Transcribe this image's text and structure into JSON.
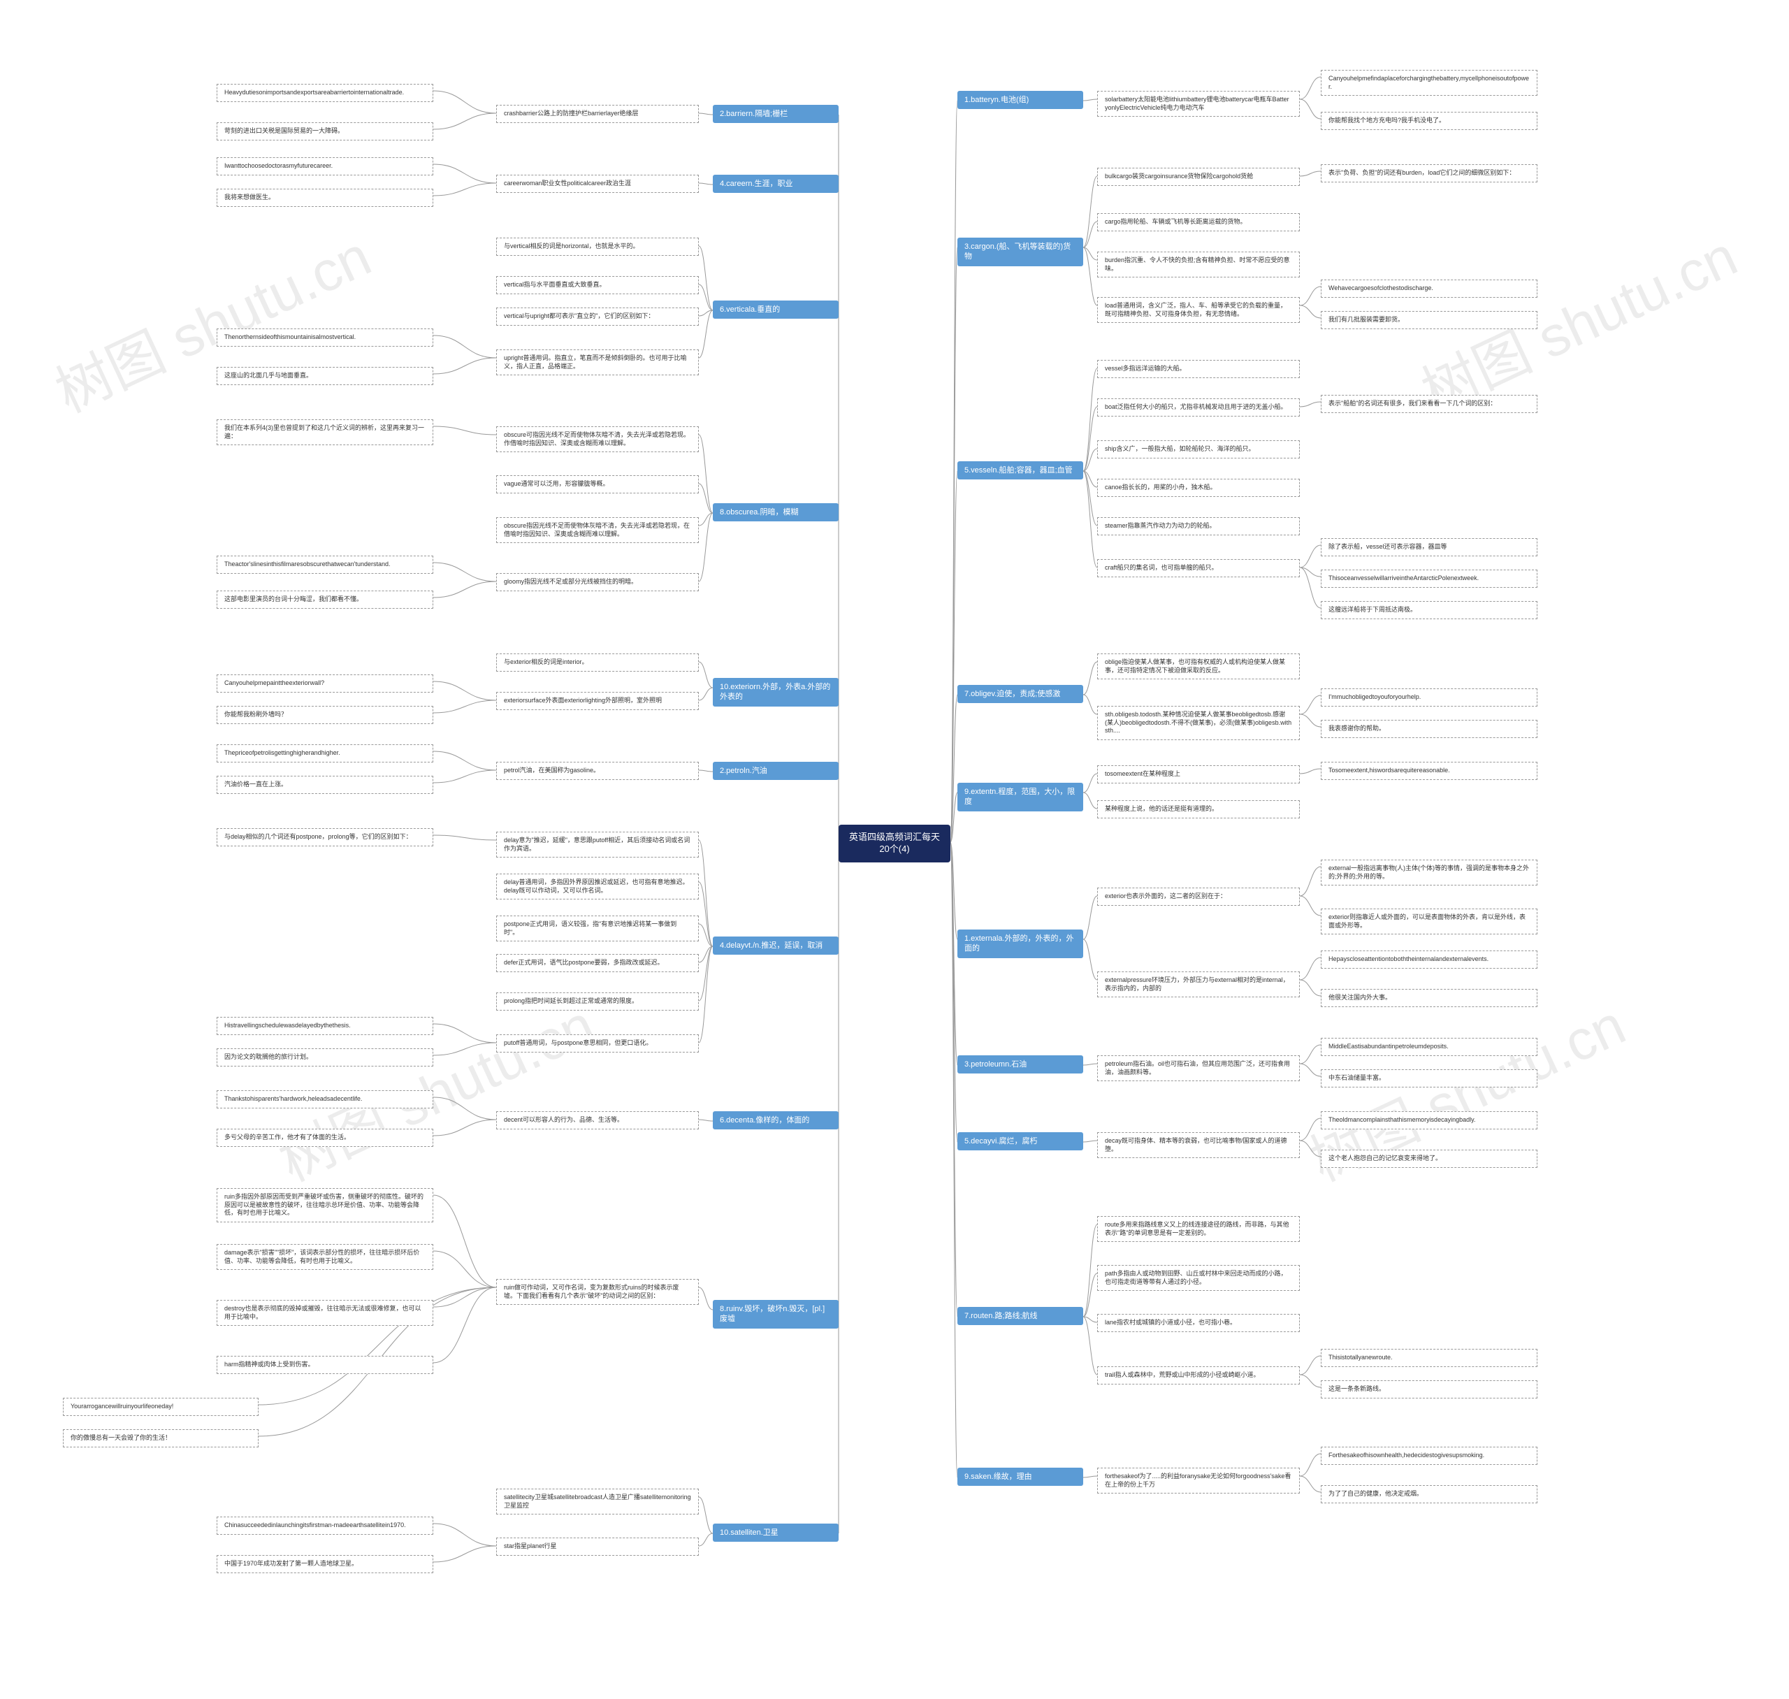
{
  "watermark": "树图 shutu.cn",
  "colors": {
    "root_bg": "#1a2a5e",
    "cat_bg": "#5b9bd5",
    "node_fg": "#ffffff",
    "leaf_border": "#999999",
    "line": "#999999",
    "page_bg": "#ffffff"
  },
  "root": {
    "text": "英语四级高频词汇每天20个(4)"
  },
  "left": [
    {
      "label": "2.barriern.隔墙;栅栏",
      "subs": [
        {
          "text": "crashbarrier公路上的防撞护栏barrierlayer绝缘层",
          "leaves": [
            {
              "text": "Heavydutiesonimportsandexportsareabarriertointernationaltrade."
            },
            {
              "text": "苛刻的进出口关税是国际贸易的一大障碍。"
            }
          ]
        }
      ]
    },
    {
      "label": "4.careern.生涯，职业",
      "subs": [
        {
          "text": "careerwoman职业女性politicalcareer政治生涯",
          "leaves": [
            {
              "text": "Iwanttochoosedoctorasmyfuturecareer."
            },
            {
              "text": "我将来想做医生。"
            }
          ]
        }
      ]
    },
    {
      "label": "6.verticala.垂直的",
      "subs": [
        {
          "text": "与vertical相反的词是horizontal，也就是水平的。"
        },
        {
          "text": "vertical指与水平面垂直或大致垂直。"
        },
        {
          "text": "vertical与upright都可表示\"直立的\"，它们的区别如下："
        },
        {
          "text": "upright普通用词。指直立，笔直而不是倾斜倒卧的。也可用于比喻义，指人正直，品格端正。",
          "leaves": [
            {
              "text": "Thenorthernsideofthismountainisalmostvertical."
            },
            {
              "text": "这座山的北面几乎与地面垂直。"
            }
          ]
        }
      ]
    },
    {
      "label": "8.obscurea.阴暗，模糊",
      "subs": [
        {
          "text": "obscure可指因光线不足而使物体灰暗不清，失去光泽或若隐若现。作借喻时指因知识、深奥或含糊而难以理解。",
          "leaves": [
            {
              "text": "我们在本系列4(3)里也曾提到了和这几个近义词的辨析，这里再来复习一遍："
            }
          ]
        },
        {
          "text": "vague通常可以泛用，形容朦胧等概。"
        },
        {
          "text": "obscure指因光线不足而使物体灰暗不清，失去光泽或若隐若现，在借喻时指因知识、深奥或含糊而难以理解。"
        },
        {
          "text": "gloomy指因光线不足或部分光线被挡住的明暗。",
          "leaves": [
            {
              "text": "Theactor'slinesinthisfilmaresobscurethatwecan'tunderstand."
            },
            {
              "text": "这部电影里演员的台词十分晦涩，我们都看不懂。"
            }
          ]
        }
      ]
    },
    {
      "label": "10.exteriorn.外部，外表a.外部的外表的",
      "subs": [
        {
          "text": "与exterior相反的词是interior。"
        },
        {
          "text": "exteriorsurface外表面exteriorlighting外部照明，室外照明",
          "leaves": [
            {
              "text": "Canyouhelpmepainttheexteriorwall?"
            },
            {
              "text": "你能帮我粉刷外墙吗？"
            }
          ]
        }
      ]
    },
    {
      "label": "2.petroln.汽油",
      "subs": [
        {
          "text": "petrol汽油，在美国称为gasoline。",
          "leaves": [
            {
              "text": "Thepriceofpetrolisgettinghigherandhigher."
            },
            {
              "text": "汽油价格一直在上涨。"
            }
          ]
        }
      ]
    },
    {
      "label": "4.delayvt./n.推迟，延误，取消",
      "subs": [
        {
          "text": "delay意为\"推迟，延缓\"，意思跟putoff相近，其后须接动名词或名词作为宾语。",
          "leaves": [
            {
              "text": "与delay相似的几个词还有postpone，prolong等，它们的区别如下："
            }
          ]
        },
        {
          "text": "delay普通用词，多指因外界原因推迟或延迟，也可指有意地推迟。delay既可以作动词，又可以作名词。"
        },
        {
          "text": "postpone正式用词，语义较强，指\"有意识地推迟将某一事做到时\"。"
        },
        {
          "text": "defer正式用词，语气比postpone要弱，多指政改或延迟。"
        },
        {
          "text": "prolong指把时间延长到超过正常或通常的限度。"
        },
        {
          "text": "putoff普通用词，与postpone意思相同，但更口语化。",
          "leaves": [
            {
              "text": "Histravellingschedulewasdelayedbythethesis."
            },
            {
              "text": "因为论文的耽搁他的旅行计划。"
            }
          ]
        }
      ]
    },
    {
      "label": "6.decenta.像样的，体面的",
      "subs": [
        {
          "text": "decent可以形容人的行为、品德、生活等。",
          "leaves": [
            {
              "text": "Thankstohisparents'hardwork,heleadsadecentlife."
            },
            {
              "text": "多亏父母的辛苦工作，他才有了体面的生活。"
            }
          ]
        }
      ]
    },
    {
      "label": "8.ruinv.毁坏，破坏n.毁灭，[pl.]废墟",
      "subs": [
        {
          "text": "ruin做可作动词，又可作名词，变为复数形式ruins的时候表示废墟。下面我们看看有几个表示\"破坏\"的动词之间的区别：",
          "leaves": [
            {
              "text": "ruin多指因外部原因而受到严重破坏或伤害，侧重破坏的彻底性。破坏的原因可以是被故意性的破坏，往往暗示总环是价值、功率、功能等会降低，有时也用于比喻义。"
            },
            {
              "text": "damage表示\"损害\"\"损坏\"，该词表示部分性的损坏，往往暗示损环后价值、功率、功能等会降低，有时也用于比喻义。"
            },
            {
              "text": "destroy也是表示彻底的毁掉或摧毁，往往暗示无法或很难修复，也可以用于比喻中。"
            },
            {
              "text": "harm指精神或肉体上受到伤害。"
            }
          ],
          "extra": [
            {
              "text": "Yourarrogancewillruinyourlifeoneday!"
            },
            {
              "text": "你的傲慢总有一天会毁了你的生活！"
            }
          ]
        },
        {
          "text": ""
        }
      ]
    },
    {
      "label": "10.satelliten.卫星",
      "subs": [
        {
          "text": "satellitecity卫星城satellitebroadcast人造卫星广播satellitemonitoring卫星监控"
        },
        {
          "text": "star指星planet行星",
          "leaves": [
            {
              "text": "Chinasucceededinlaunchingitsfirstman-madeearthsatellitein1970."
            },
            {
              "text": "中国于1970年成功发射了第一颗人造地球卫星。"
            }
          ]
        }
      ]
    }
  ],
  "right": [
    {
      "label": "1.batteryn.电池(组)",
      "subs": [
        {
          "text": "solarbattery太阳能电池lithiumbattery锂电池batterycar电瓶车BatteryonlyElectricVehicle纯电力电动汽车",
          "leaves": [
            {
              "text": "Canyouhelpmefindaplaceforchargingthebattery,mycellphoneisoutofpower."
            },
            {
              "text": "你能帮我找个地方充电吗?我手机没电了。"
            }
          ]
        }
      ]
    },
    {
      "label": "3.cargon.(船、飞机等装载的)货物",
      "subs": [
        {
          "text": "bulkcargo装货cargoinsurance货物保险cargohold货舱",
          "leaves": [
            {
              "text": "表示\"负荷、负担\"的词还有burden，load它们之间的细微区别如下："
            }
          ]
        },
        {
          "text": "cargo指用轮船、车辆或飞机等长距离运载的货物。"
        },
        {
          "text": "burden指沉重、令人不快的负担;含有精神负担、时常不愿应受的意味。"
        },
        {
          "text": "load普通用词，含义广泛，指人、车、船等承受它的负载的重量，既可指精神负担、又可指身体负担，有无悲情绪。",
          "leaves": [
            {
              "text": "Wehavecargoesofclothestodischarge."
            },
            {
              "text": "我们有几批服装需要卸货。"
            }
          ]
        }
      ]
    },
    {
      "label": "5.vesseln.船舶;容器，器皿;血管",
      "subs": [
        {
          "text": "vessel多指远洋运输的大船。",
          "leaves": []
        },
        {
          "text": "boat泛指任何大小的船只，尤指非机械发动且用于进的无盖小船。",
          "leaves": [
            {
              "text": "表示\"船舶\"的名词还有很多，我们来看看一下几个词的区别："
            }
          ]
        },
        {
          "text": "ship含义广，一般指大船，如轮船轮只、海洋的船只。"
        },
        {
          "text": "canoe指长长的，用桨的小舟，独木船。"
        },
        {
          "text": "steamer指靠蒸汽作动力为动力的轮船。"
        },
        {
          "text": "craft船只的集名词，也可指单艘的船只。",
          "leaves": [
            {
              "text": "除了表示船，vessel还可表示容器，器皿等"
            },
            {
              "text": "ThisoceanvesselwillarriveintheAntarcticPolenextweek."
            },
            {
              "text": "这艘远洋船将于下周抵达南极。"
            }
          ]
        }
      ]
    },
    {
      "label": "7.obligev.迫使，责成;使感激",
      "subs": [
        {
          "text": "oblige指迫使某人做某事，也可指有权威的人或机构迫使某人做某事，还可指特定情况下被迫做采取的反应。"
        },
        {
          "text": "sth.obligesb.todosth.某种情况迫使某人做某事beobligedtosb.感谢(某人)beobligedtodosth.不得不(做某事)，必须(做某事)obligesb.withsth....",
          "leaves": [
            {
              "text": "I'mmuchobligedtoyouforyourhelp."
            },
            {
              "text": "我衷感谢你的帮助。"
            }
          ]
        }
      ]
    },
    {
      "label": "9.extentn.程度，范围，大小，限度",
      "subs": [
        {
          "text": "tosomeextent在某种程度上",
          "leaves": [
            {
              "text": "Tosomeextent,hiswordsarequitereasonable."
            }
          ]
        },
        {
          "text": "某种程度上说，他的话还是挺有道理的。"
        }
      ]
    },
    {
      "label": "1.externala.外部的，外表的，外面的",
      "subs": [
        {
          "text": "exterior也表示外面的，这二者的区别在于：",
          "leaves": [
            {
              "text": "external一般指远离事物(人)主体(个体)等的事情，强调的是事物本身之外的;外界的;外用的等。"
            },
            {
              "text": "exterior则指靠近人或外面的，可以是表面物体的外表，肯以是外线，表面或外形等。"
            }
          ]
        },
        {
          "text": "externalpressure环境压力，外部压力与external相对的是internal，表示指内的，内部的",
          "leaves": [
            {
              "text": "Hepayscloseattentiontoboththeinternalandexternalevents."
            },
            {
              "text": "他很关注国内外大事。"
            }
          ]
        }
      ]
    },
    {
      "label": "3.petroleumn.石油",
      "subs": [
        {
          "text": "petroleum指石油。oil也可指石油，但其应用范围广泛，还可指食用油，油画颜料等。",
          "leaves": [
            {
              "text": "MiddleEastisabundantinpetroleumdeposits."
            },
            {
              "text": "中东石油储量丰富。"
            }
          ]
        }
      ]
    },
    {
      "label": "5.decayvi.腐烂，腐朽",
      "subs": [
        {
          "text": "decay既可指身体、精本等的衰弱，也可比喻事物/国家或人的道德堕。",
          "leaves": [
            {
              "text": "Theoldmancomplainsthathismemoryisdecayingbadly."
            },
            {
              "text": "这个老人抱怨自己的记忆衰变来得地了。"
            }
          ]
        }
      ]
    },
    {
      "label": "7.routen.路;路线;航线",
      "subs": [
        {
          "text": "route多用来指路线意义又上的线连接途径的路线，而非路，与其他表示\"路\"的单词意思是有一定差别的。"
        },
        {
          "text": "path多指由人或动物到田野、山丘或村林中来回走动而成的小路，也可指走街道等带有人通过的小径。"
        },
        {
          "text": "lane指农村或城镇的小道或小径，也可指小巷。"
        },
        {
          "text": "trail指人或森林中，荒野或山中形成的小径或崎岖小道。",
          "leaves": [
            {
              "text": "Thisistotallyanewroute."
            },
            {
              "text": "这是一条条新路线。"
            }
          ]
        }
      ]
    },
    {
      "label": "9.saken.缘故，理由",
      "subs": [
        {
          "text": "forthesakeof为了.....的利益foranysake无论如何forgoodness'sake看在上帝的份上千万",
          "leaves": [
            {
              "text": "Forthesakeofhisownhealth,hedecidestogivesupsmoking."
            },
            {
              "text": "为了了自己的健康，他决定戒烟。"
            }
          ]
        }
      ]
    }
  ]
}
